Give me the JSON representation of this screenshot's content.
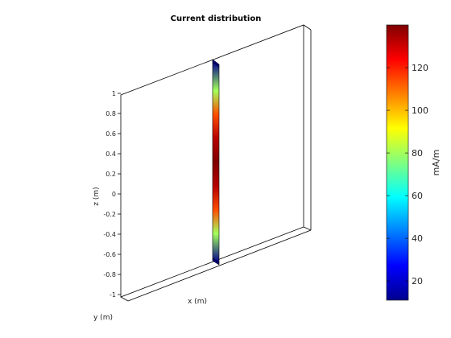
{
  "chart_data": {
    "type": "heatmap",
    "title": "Current distribution",
    "xlabel": "x (m)",
    "ylabel": "y (m)",
    "zlabel": "z (m)",
    "z_ticks": [
      1,
      0.8,
      0.6,
      0.4,
      0.2,
      0,
      -0.2,
      -0.4,
      -0.6,
      -0.8,
      -1
    ],
    "zlim": [
      -1,
      1
    ],
    "colormap": "jet",
    "colorbar": {
      "label": "mA/m",
      "ticks": [
        20,
        40,
        60,
        80,
        100,
        120
      ],
      "range": [
        11,
        140
      ]
    },
    "current_profile": {
      "z": [
        -0.84,
        -0.6,
        -0.4,
        -0.2,
        0,
        0.2,
        0.4,
        0.6,
        0.84
      ],
      "value": [
        11,
        80,
        114,
        133,
        140,
        133,
        114,
        80,
        11
      ]
    }
  }
}
